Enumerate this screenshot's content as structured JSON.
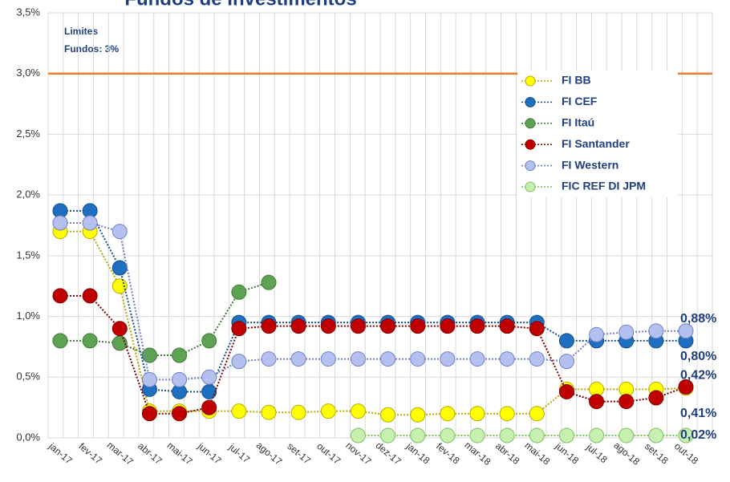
{
  "chart_data": {
    "type": "line",
    "title": "Fundos de Investimentos",
    "annotation_lines": [
      "Limites",
      "Fundos: 3%"
    ],
    "limit": {
      "value": 3,
      "color": "#ed7d31"
    },
    "categories": [
      "jan-17",
      "fev-17",
      "mar-17",
      "abr-17",
      "mai-17",
      "jun-17",
      "jul-17",
      "ago-17",
      "set-17",
      "out-17",
      "nov-17",
      "dez-17",
      "jan-18",
      "fev-18",
      "mar-18",
      "abr-18",
      "mai-18",
      "jun-18",
      "jul-18",
      "ago-18",
      "set-18",
      "out-18"
    ],
    "ylim": [
      0,
      3.5
    ],
    "yticks": [
      {
        "value": 0,
        "label": "0,0%"
      },
      {
        "value": 0.5,
        "label": "0,5%"
      },
      {
        "value": 1,
        "label": "1,0%"
      },
      {
        "value": 1.5,
        "label": "1,5%"
      },
      {
        "value": 2,
        "label": "2,0%"
      },
      {
        "value": 2.5,
        "label": "2,5%"
      },
      {
        "value": 3,
        "label": "3,0%"
      },
      {
        "value": 3.5,
        "label": "3,5%"
      }
    ],
    "grid": true,
    "legend": "top-right",
    "series": [
      {
        "name": "FI BB",
        "color": "#ffff00",
        "stroke": "#b8a800",
        "values": [
          1.7,
          1.7,
          1.25,
          0.22,
          0.22,
          0.22,
          0.22,
          0.21,
          0.21,
          0.22,
          0.22,
          0.19,
          0.19,
          0.2,
          0.2,
          0.2,
          0.2,
          0.4,
          0.4,
          0.4,
          0.4,
          0.41
        ],
        "value_labels": [
          null,
          null,
          null,
          null,
          null,
          null,
          null,
          null,
          null,
          null,
          null,
          null,
          null,
          null,
          null,
          null,
          null,
          null,
          null,
          null,
          null,
          "0,41%"
        ]
      },
      {
        "name": "FI CEF",
        "color": "#1f6fc0",
        "stroke": "#174f8a",
        "values": [
          1.87,
          1.87,
          1.4,
          0.4,
          0.38,
          0.38,
          0.95,
          0.95,
          0.95,
          0.95,
          0.95,
          0.95,
          0.95,
          0.95,
          0.95,
          0.95,
          0.95,
          0.8,
          0.8,
          0.8,
          0.8,
          0.8
        ],
        "value_labels": [
          null,
          null,
          null,
          null,
          null,
          null,
          null,
          null,
          null,
          null,
          null,
          null,
          null,
          null,
          null,
          null,
          null,
          null,
          null,
          null,
          null,
          "0,80%"
        ]
      },
      {
        "name": "FI Itaú",
        "color": "#5ea353",
        "stroke": "#3f7a37",
        "values": [
          0.8,
          0.8,
          0.78,
          0.68,
          0.68,
          0.8,
          1.2,
          1.28,
          null,
          null,
          null,
          null,
          null,
          null,
          null,
          null,
          null,
          null,
          null,
          null,
          null,
          null
        ]
      },
      {
        "name": "FI Santander",
        "color": "#c00000",
        "stroke": "#800000",
        "values": [
          1.17,
          1.17,
          0.9,
          0.2,
          0.2,
          0.25,
          0.9,
          0.92,
          0.92,
          0.92,
          0.92,
          0.92,
          0.92,
          0.92,
          0.92,
          0.92,
          0.9,
          0.38,
          0.3,
          0.3,
          0.33,
          0.42
        ],
        "value_labels": [
          null,
          null,
          null,
          null,
          null,
          null,
          null,
          null,
          null,
          null,
          null,
          null,
          null,
          null,
          null,
          null,
          null,
          null,
          null,
          null,
          null,
          "0,42%"
        ]
      },
      {
        "name": "FI Western",
        "color": "#b4c0f0",
        "stroke": "#6f80c8",
        "values": [
          1.77,
          1.77,
          1.7,
          0.48,
          0.48,
          0.5,
          0.63,
          0.65,
          0.65,
          0.65,
          0.65,
          0.65,
          0.65,
          0.65,
          0.65,
          0.65,
          0.65,
          0.63,
          0.85,
          0.87,
          0.88,
          0.88
        ],
        "value_labels": [
          null,
          null,
          null,
          null,
          null,
          null,
          null,
          null,
          null,
          null,
          null,
          null,
          null,
          null,
          null,
          null,
          null,
          null,
          null,
          null,
          null,
          "0,88%"
        ]
      },
      {
        "name": "FIC REF DI JPM",
        "color": "#c6efb0",
        "stroke": "#7fbf60",
        "values": [
          null,
          null,
          null,
          null,
          null,
          null,
          null,
          null,
          null,
          null,
          0.02,
          0.02,
          0.02,
          0.02,
          0.02,
          0.02,
          0.02,
          0.02,
          0.02,
          0.02,
          0.02,
          0.02
        ],
        "value_labels": [
          null,
          null,
          null,
          null,
          null,
          null,
          null,
          null,
          null,
          null,
          null,
          null,
          null,
          null,
          null,
          null,
          null,
          null,
          null,
          null,
          null,
          "0,02%"
        ]
      }
    ]
  }
}
